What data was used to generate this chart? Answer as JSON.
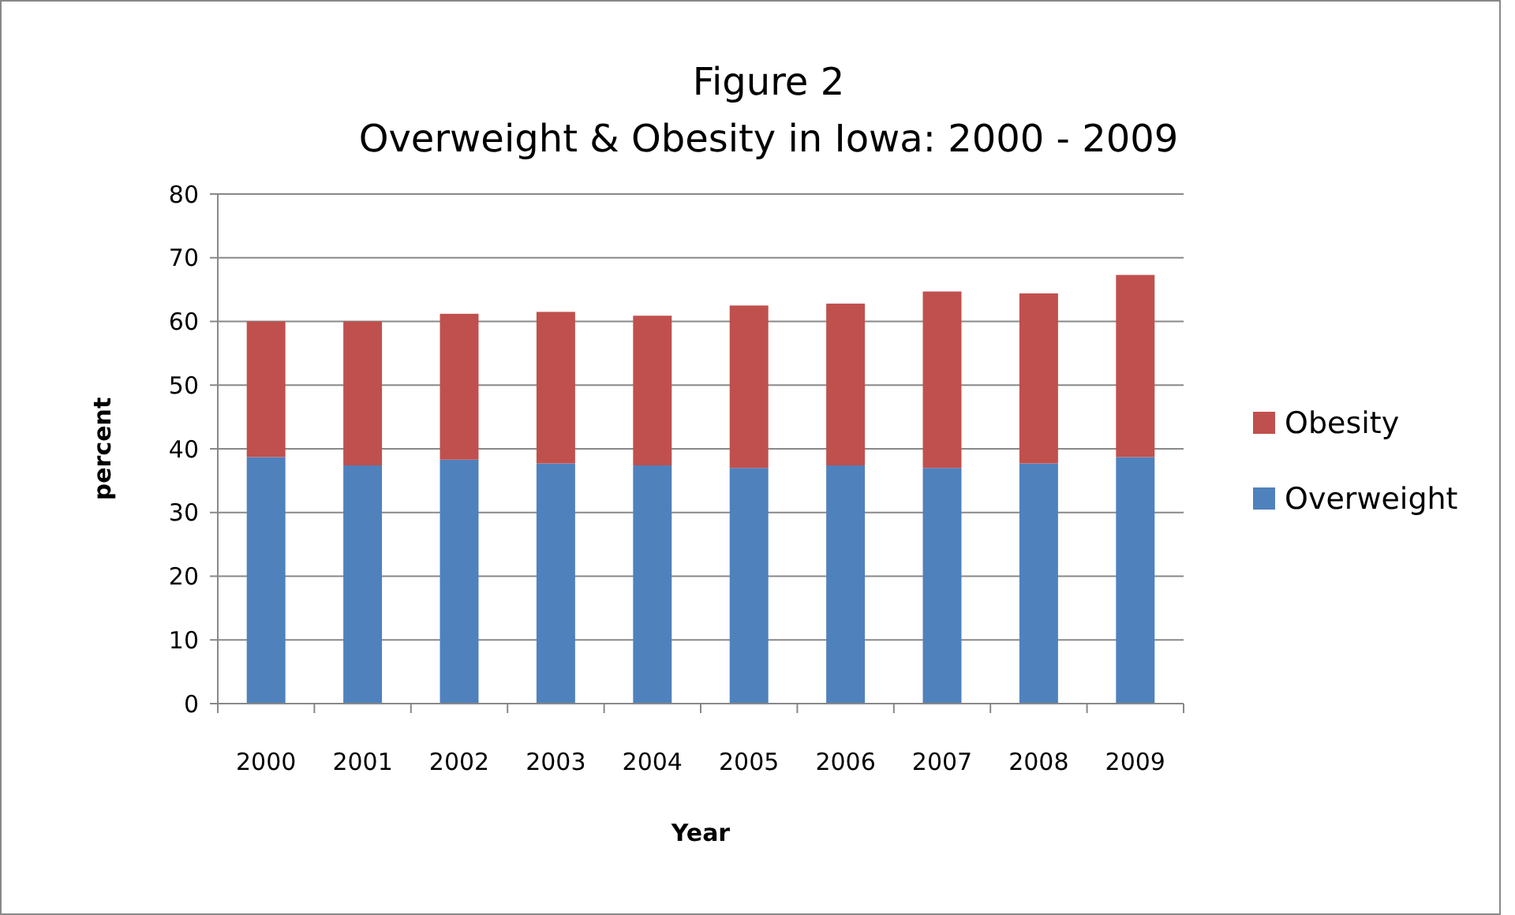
{
  "chart_data": {
    "type": "bar",
    "title": "Figure 2",
    "subtitle": "Overweight & Obesity in Iowa: 2000 - 2009",
    "xlabel": "Year",
    "ylabel": "percent",
    "categories": [
      "2000",
      "2001",
      "2002",
      "2003",
      "2004",
      "2005",
      "2006",
      "2007",
      "2008",
      "2009"
    ],
    "series": [
      {
        "name": "Overweight",
        "color": "#4f81bd",
        "values": [
          38.7,
          37.4,
          38.3,
          37.7,
          37.4,
          37.0,
          37.4,
          37.0,
          37.7,
          38.7
        ]
      },
      {
        "name": "Obesity",
        "color": "#c0504d",
        "values": [
          21.3,
          22.6,
          22.9,
          23.8,
          23.5,
          25.5,
          25.4,
          27.7,
          26.7,
          28.6
        ]
      }
    ],
    "stacked": true,
    "ylim": [
      0,
      80
    ],
    "yticks": [
      0,
      10,
      20,
      30,
      40,
      50,
      60,
      70,
      80
    ],
    "grid": "y",
    "legend": "right"
  }
}
